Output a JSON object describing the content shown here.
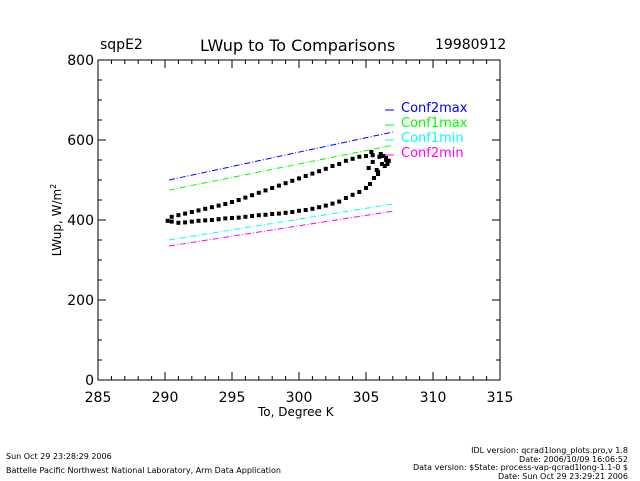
{
  "header": {
    "site": "sqpE2",
    "date": "19980912"
  },
  "footer": {
    "timestamp": "Sun Oct 29 23:28:29 2006",
    "institution": "Battelle Pacific Northwest National Laboratory, Arm Data Application",
    "idl_version": "IDL version: qcrad1long_plots.pro,v 1.8",
    "idl_date": "Date: 2006/10/09 16:06:52",
    "data_version": "Data version: $State: process-vap-qcrad1long-1.1-0 $",
    "data_date": "Date: Sun Oct 29 23:29:21 2006"
  },
  "chart_data": {
    "type": "scatter",
    "title": "LWup to To Comparisons",
    "xlabel": "To, Degree K",
    "ylabel": "LWup, W/m",
    "ylabel_sup": "2",
    "xlim": [
      285,
      315
    ],
    "ylim": [
      0,
      800
    ],
    "xticks": [
      "285",
      "290",
      "295",
      "300",
      "305",
      "310",
      "315"
    ],
    "yticks": [
      "0",
      "200",
      "400",
      "600",
      "800"
    ],
    "grid": false,
    "legend_position": "top-right",
    "lines": [
      {
        "name": "Conf2max",
        "color": "#0000ff",
        "x": [
          290.3,
          307.0
        ],
        "y": [
          500,
          620
        ]
      },
      {
        "name": "Conf1max",
        "color": "#00ff00",
        "x": [
          290.3,
          307.0
        ],
        "y": [
          475,
          587
        ]
      },
      {
        "name": "Conf1min",
        "color": "#00ffff",
        "x": [
          290.3,
          307.0
        ],
        "y": [
          350,
          440
        ]
      },
      {
        "name": "Conf2min",
        "color": "#ff00ff",
        "x": [
          290.3,
          307.0
        ],
        "y": [
          335,
          422
        ]
      }
    ],
    "points": {
      "color": "#000000",
      "x": [
        290.2,
        290.5,
        291,
        291.5,
        292,
        292.5,
        293,
        293.5,
        294,
        294.5,
        295,
        295.5,
        296,
        296.5,
        297,
        297.5,
        298,
        298.5,
        299,
        299.5,
        300,
        300.5,
        301,
        301.5,
        302,
        302.5,
        303,
        303.5,
        304,
        304.5,
        305,
        305.3,
        305.6,
        305.9,
        306.2,
        306.5,
        290.5,
        291,
        291.5,
        292,
        292.5,
        293,
        293.5,
        294,
        294.5,
        295,
        295.5,
        296,
        296.5,
        297,
        297.5,
        298,
        298.5,
        299,
        299.5,
        300,
        300.5,
        301,
        301.5,
        302,
        302.5,
        303,
        303.5,
        304,
        304.5,
        305,
        305.5,
        306,
        306.5,
        305.2,
        305.5,
        305.8,
        306.1,
        306.4,
        306.7,
        305.4,
        305.9,
        306.3,
        306.6
      ],
      "y": [
        398,
        396,
        393,
        394,
        396,
        398,
        399,
        400,
        402,
        404,
        405,
        406,
        408,
        410,
        412,
        413,
        415,
        416,
        418,
        420,
        423,
        425,
        428,
        432,
        436,
        441,
        446,
        455,
        463,
        470,
        480,
        490,
        505,
        520,
        540,
        555,
        408,
        412,
        416,
        420,
        424,
        428,
        432,
        436,
        440,
        445,
        450,
        456,
        462,
        468,
        474,
        480,
        486,
        492,
        498,
        504,
        510,
        516,
        522,
        528,
        535,
        540,
        548,
        553,
        558,
        560,
        562,
        558,
        550,
        530,
        545,
        525,
        565,
        535,
        548,
        570,
        515,
        560,
        540
      ]
    }
  }
}
